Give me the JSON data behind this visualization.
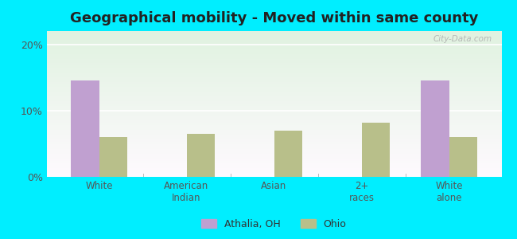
{
  "title": "Geographical mobility - Moved within same county",
  "categories": [
    "White",
    "American\nIndian",
    "Asian",
    "2+\nraces",
    "White\nalone"
  ],
  "athalia_values": [
    14.5,
    0,
    0,
    0,
    14.5
  ],
  "ohio_values": [
    6.0,
    6.5,
    7.0,
    8.2,
    6.0
  ],
  "athalia_color": "#c0a0d0",
  "ohio_color": "#b8bf8a",
  "background_outer": "#00eeff",
  "background_inner": "#ffffff",
  "ylim": [
    0,
    22
  ],
  "yticks": [
    0,
    10,
    20
  ],
  "ytick_labels": [
    "0%",
    "10%",
    "20%"
  ],
  "bar_width": 0.32,
  "title_fontsize": 13,
  "legend_label1": "Athalia, OH",
  "legend_label2": "Ohio",
  "watermark": "City-Data.com",
  "title_color": "#222222",
  "tick_color": "#555555",
  "grid_color": "#dddddd"
}
